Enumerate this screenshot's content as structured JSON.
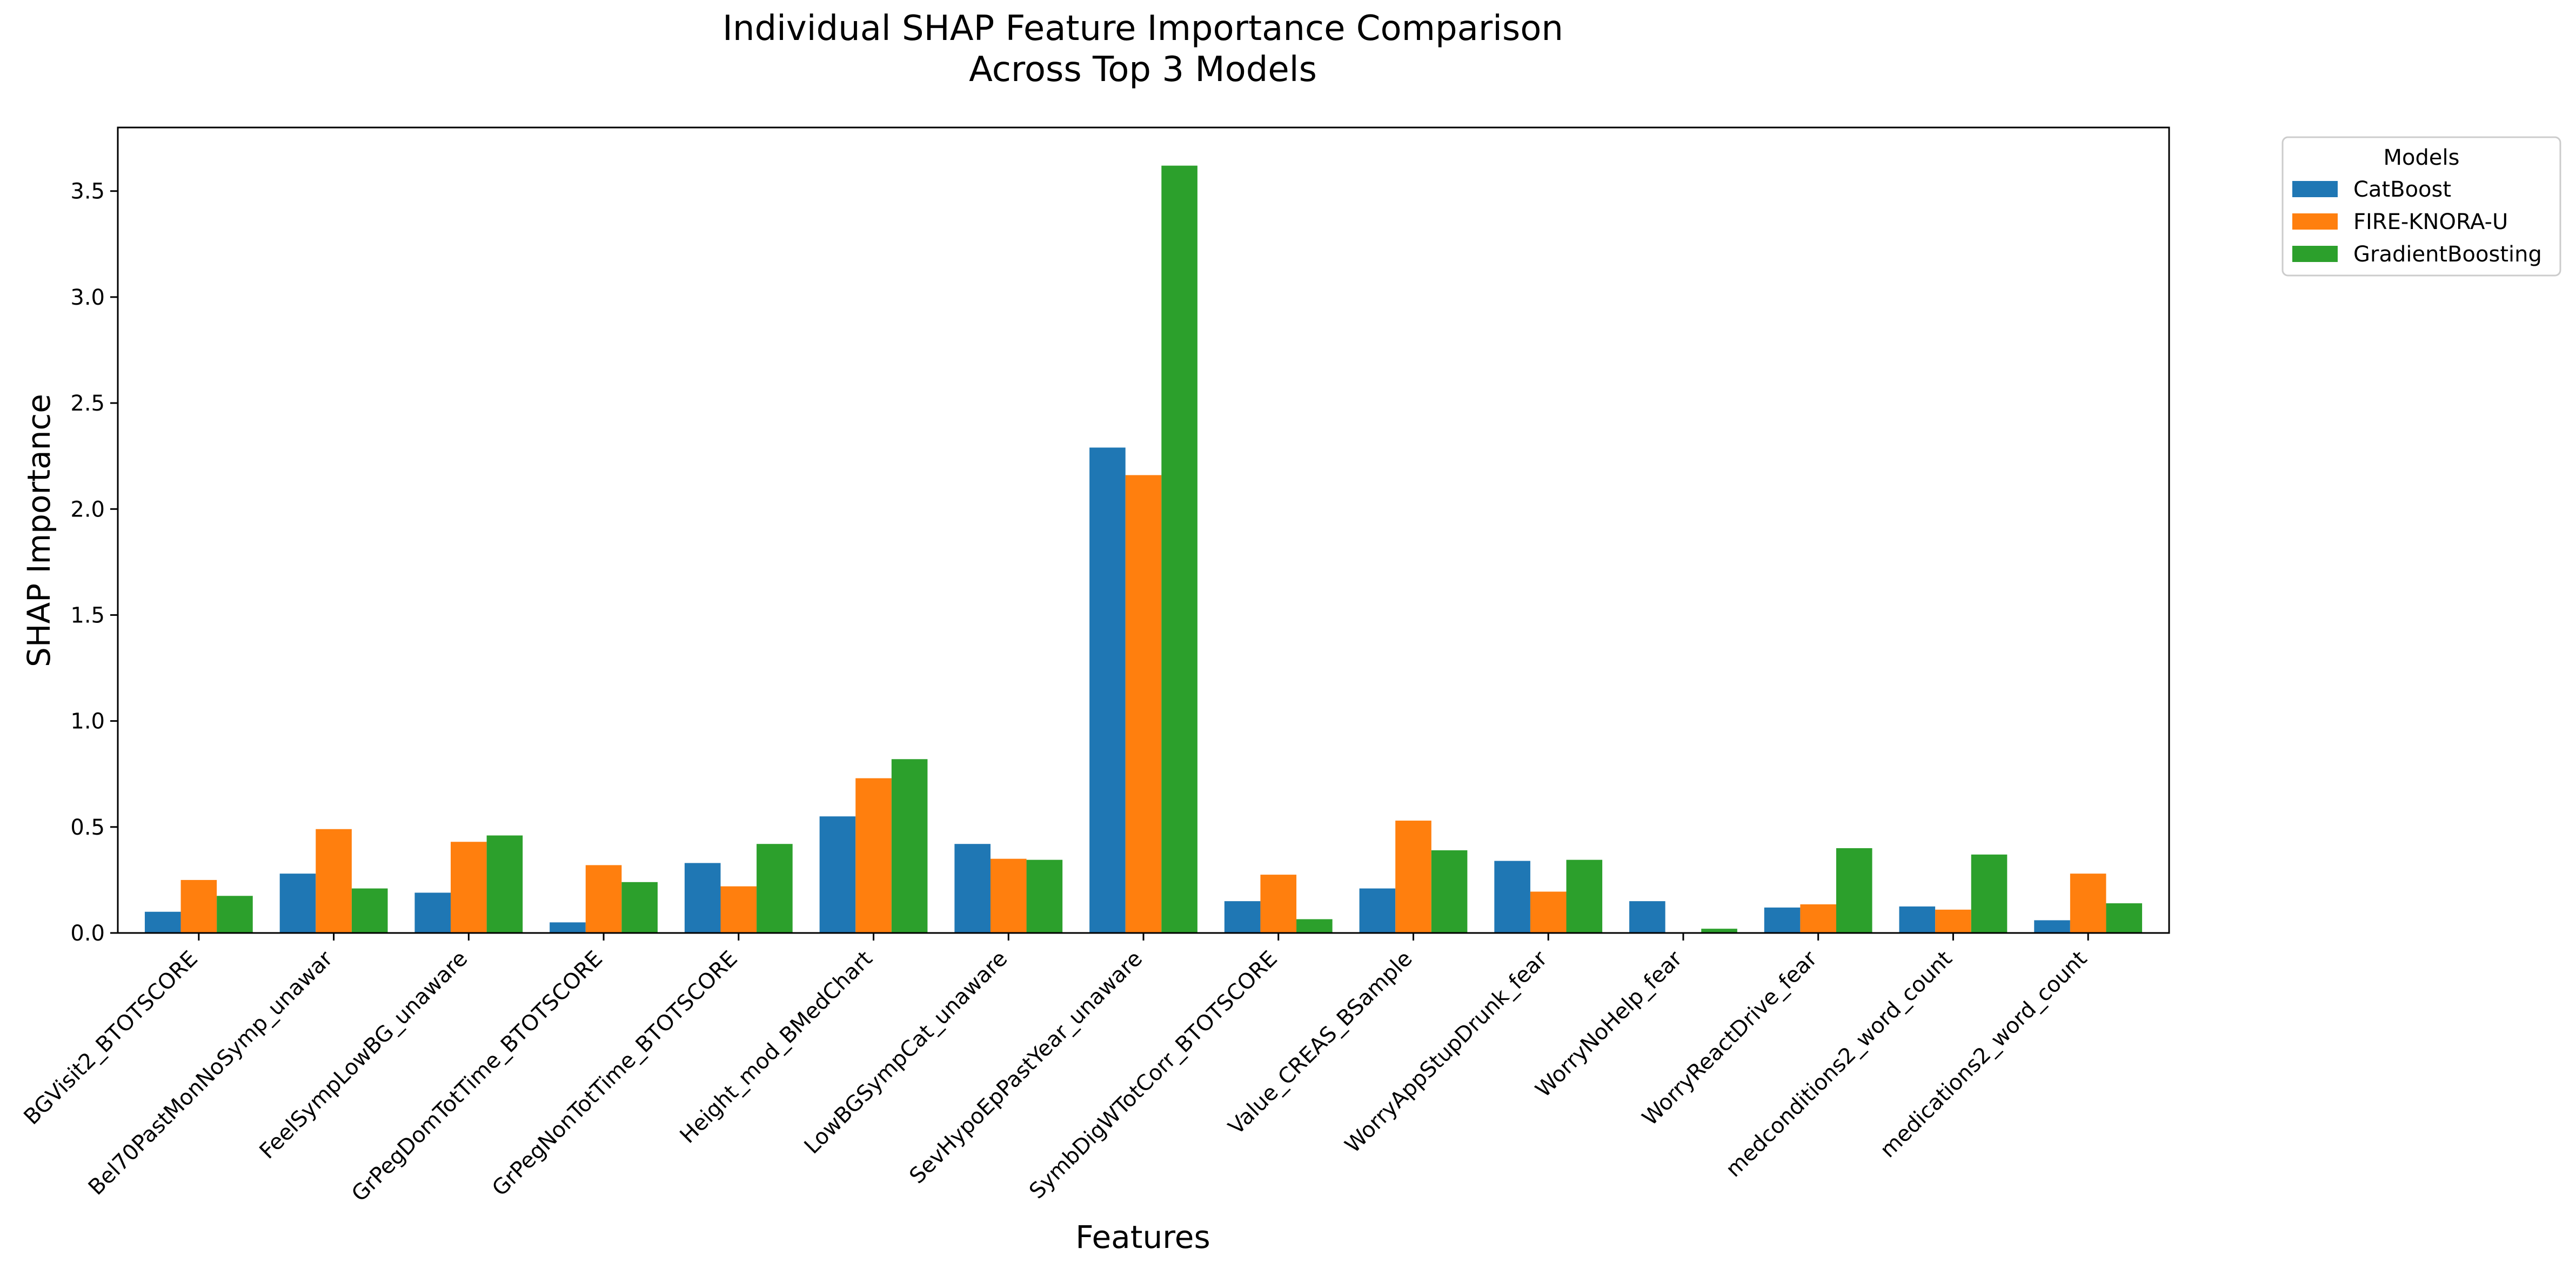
{
  "chart_data": {
    "type": "bar",
    "title": [
      "Individual SHAP Feature Importance Comparison",
      "Across Top 3 Models"
    ],
    "xlabel": "Features",
    "ylabel": "SHAP Importance",
    "ylim": [
      0,
      3.8
    ],
    "yticks": [
      0.0,
      0.5,
      1.0,
      1.5,
      2.0,
      2.5,
      3.0,
      3.5
    ],
    "ytick_labels": [
      "0.0",
      "0.5",
      "1.0",
      "1.5",
      "2.0",
      "2.5",
      "3.0",
      "3.5"
    ],
    "grid": false,
    "legend": {
      "title": "Models",
      "placement": "outside-top-right"
    },
    "categories": [
      "BGVisit2_BTOTSCORE",
      "Bel70PastMonNoSymp_unawar",
      "FeelSympLowBG_unaware",
      "GrPegDomTotTime_BTOTSCORE",
      "GrPegNonTotTime_BTOTSCORE",
      "Height_mod_BMedChart",
      "LowBGSympCat_unaware",
      "SevHypoEpPastYear_unaware",
      "SymbDigWTotCorr_BTOTSCORE",
      "Value_CREAS_BSample",
      "WorryAppStupDrunk_fear",
      "WorryNoHelp_fear",
      "WorryReactDrive_fear",
      "medconditions2_word_count",
      "medications2_word_count"
    ],
    "series": [
      {
        "name": "CatBoost",
        "color": "#1f77b4",
        "values": [
          0.1,
          0.28,
          0.19,
          0.05,
          0.33,
          0.55,
          0.42,
          2.29,
          0.15,
          0.21,
          0.34,
          0.15,
          0.12,
          0.125,
          0.06
        ]
      },
      {
        "name": "FIRE-KNORA-U",
        "color": "#ff7f0e",
        "values": [
          0.25,
          0.49,
          0.43,
          0.32,
          0.22,
          0.73,
          0.35,
          2.16,
          0.275,
          0.53,
          0.195,
          0.0,
          0.135,
          0.11,
          0.28
        ]
      },
      {
        "name": "GradientBoosting",
        "color": "#2ca02c",
        "values": [
          0.175,
          0.21,
          0.46,
          0.24,
          0.42,
          0.82,
          0.345,
          3.62,
          0.065,
          0.39,
          0.345,
          0.02,
          0.4,
          0.37,
          0.14
        ]
      }
    ]
  }
}
